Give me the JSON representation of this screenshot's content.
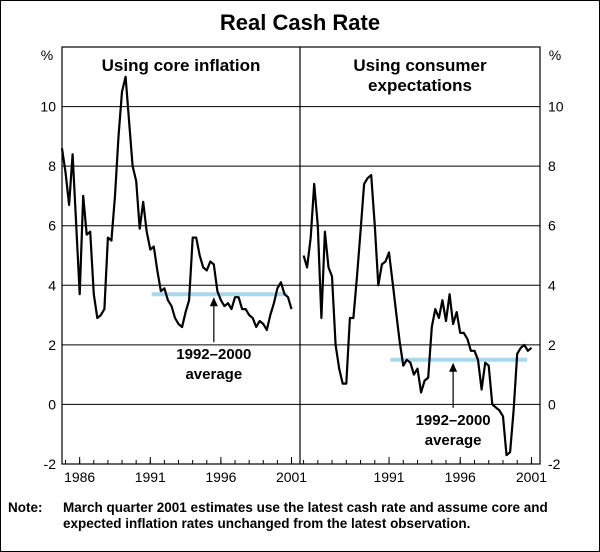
{
  "chart_data": {
    "type": "line",
    "title": "Real Cash Rate",
    "unit_label": "%",
    "ylim": [
      -2,
      12
    ],
    "yticks": [
      -2,
      0,
      2,
      4,
      6,
      8,
      10
    ],
    "grid": true,
    "panels": [
      {
        "title_lines": [
          "Using core inflation"
        ],
        "xlim": [
          1984.75,
          2001.6
        ],
        "xtick_labels": [
          "1986",
          "1991",
          "1996",
          "2001"
        ],
        "xtick_values": [
          1986,
          1991,
          1996,
          2001
        ],
        "series": [
          {
            "name": "Real cash rate (core inflation)",
            "x": [
              1984.75,
              1985.0,
              1985.25,
              1985.5,
              1985.75,
              1986.0,
              1986.25,
              1986.5,
              1986.75,
              1987.0,
              1987.25,
              1987.5,
              1987.75,
              1988.0,
              1988.25,
              1988.5,
              1988.75,
              1989.0,
              1989.25,
              1989.5,
              1989.75,
              1990.0,
              1990.25,
              1990.5,
              1990.75,
              1991.0,
              1991.25,
              1991.5,
              1991.75,
              1992.0,
              1992.25,
              1992.5,
              1992.75,
              1993.0,
              1993.25,
              1993.5,
              1993.75,
              1994.0,
              1994.25,
              1994.5,
              1994.75,
              1995.0,
              1995.25,
              1995.5,
              1995.75,
              1996.0,
              1996.25,
              1996.5,
              1996.75,
              1997.0,
              1997.25,
              1997.5,
              1997.75,
              1998.0,
              1998.25,
              1998.5,
              1998.75,
              1999.0,
              1999.25,
              1999.5,
              1999.75,
              2000.0,
              2000.25,
              2000.5,
              2000.75,
              2001.0
            ],
            "values": [
              8.6,
              7.8,
              6.7,
              8.4,
              6.1,
              3.7,
              7.0,
              5.7,
              5.8,
              3.7,
              2.9,
              3.0,
              3.2,
              5.6,
              5.5,
              7.0,
              9.0,
              10.5,
              11.0,
              9.5,
              8.0,
              7.5,
              5.9,
              6.8,
              5.8,
              5.2,
              5.3,
              4.5,
              3.8,
              3.9,
              3.5,
              3.3,
              2.9,
              2.7,
              2.6,
              3.1,
              3.5,
              5.6,
              5.6,
              5.0,
              4.6,
              4.5,
              4.8,
              4.7,
              3.8,
              3.5,
              3.3,
              3.4,
              3.2,
              3.6,
              3.6,
              3.2,
              3.2,
              3.0,
              2.9,
              2.6,
              2.8,
              2.7,
              2.5,
              3.0,
              3.4,
              3.9,
              4.1,
              3.7,
              3.6,
              3.2
            ]
          }
        ],
        "average": {
          "label_lines": [
            "1992–2000",
            "average"
          ],
          "value": 3.7,
          "x_range": [
            1991.1,
            2000.7
          ],
          "arrow_x": 1995.5
        }
      },
      {
        "title_lines": [
          "Using consumer",
          "expectations"
        ],
        "xlim": [
          1984.75,
          2001.6
        ],
        "xtick_labels": [
          "1991",
          "1996",
          "2001"
        ],
        "xtick_values": [
          1991,
          1996,
          2001
        ],
        "series": [
          {
            "name": "Real cash rate (consumer expectations)",
            "x": [
              1985.0,
              1985.25,
              1985.5,
              1985.75,
              1986.0,
              1986.25,
              1986.5,
              1986.75,
              1987.0,
              1987.25,
              1987.5,
              1987.75,
              1988.0,
              1988.25,
              1988.5,
              1988.75,
              1989.0,
              1989.25,
              1989.5,
              1989.75,
              1990.0,
              1990.25,
              1990.5,
              1990.75,
              1991.0,
              1991.25,
              1991.5,
              1991.75,
              1992.0,
              1992.25,
              1992.5,
              1992.75,
              1993.0,
              1993.25,
              1993.5,
              1993.75,
              1994.0,
              1994.25,
              1994.5,
              1994.75,
              1995.0,
              1995.25,
              1995.5,
              1995.75,
              1996.0,
              1996.25,
              1996.5,
              1996.75,
              1997.0,
              1997.25,
              1997.5,
              1997.75,
              1998.0,
              1998.25,
              1998.5,
              1998.75,
              1999.0,
              1999.25,
              1999.5,
              1999.75,
              2000.0,
              2000.25,
              2000.5,
              2000.75,
              2001.0
            ],
            "values": [
              5.0,
              4.6,
              5.6,
              7.4,
              6.0,
              2.9,
              5.8,
              4.6,
              4.3,
              2.0,
              1.2,
              0.7,
              0.7,
              2.9,
              2.9,
              4.3,
              5.8,
              7.4,
              7.6,
              7.7,
              6.0,
              4.0,
              4.7,
              4.8,
              5.1,
              4.1,
              3.1,
              2.1,
              1.3,
              1.5,
              1.4,
              1.0,
              1.2,
              0.4,
              0.8,
              0.9,
              2.6,
              3.2,
              2.9,
              3.5,
              2.8,
              3.7,
              2.7,
              3.1,
              2.4,
              2.4,
              2.2,
              1.8,
              1.8,
              1.5,
              0.5,
              1.4,
              1.3,
              0.0,
              -0.1,
              -0.2,
              -0.4,
              -1.7,
              -1.6,
              -0.2,
              1.7,
              1.9,
              2.0,
              1.8,
              1.9
            ]
          }
        ],
        "average": {
          "label_lines": [
            "1992–2000",
            "average"
          ],
          "value": 1.5,
          "x_range": [
            1991.1,
            2000.7
          ],
          "arrow_x": 1995.5
        }
      }
    ]
  },
  "note": {
    "label": "Note:",
    "text": "March quarter 2001 estimates use the latest cash rate and assume core and expected inflation rates unchanged from the latest observation."
  },
  "colors": {
    "line": "#000000",
    "average": "#a6d8f0",
    "grid": "#000000"
  }
}
